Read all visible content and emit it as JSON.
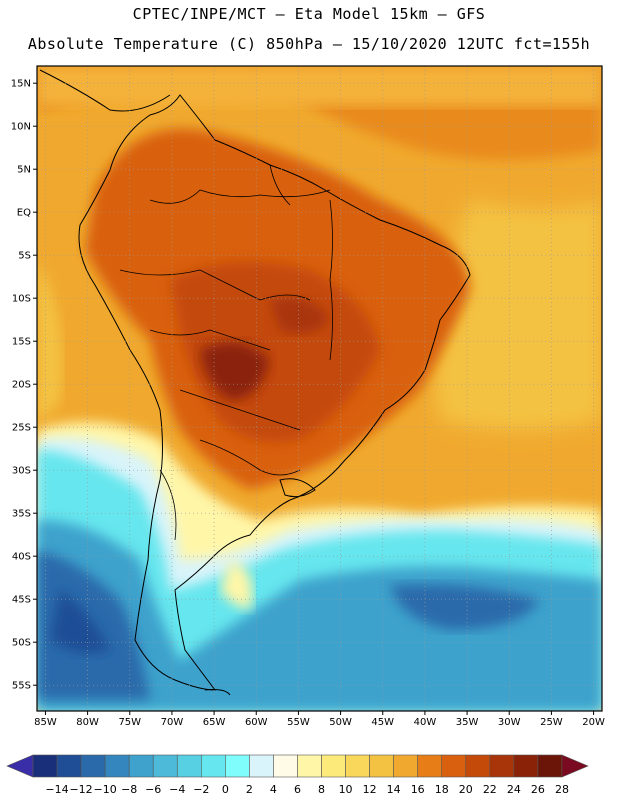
{
  "header": {
    "line1": "CPTEC/INPE/MCT –  Eta Model 15km – GFS",
    "line2": "Absolute Temperature (C) 850hPa – 15/10/2020 12UTC fct=155h"
  },
  "map": {
    "lon_range": [
      -86,
      -19
    ],
    "lat_range": [
      -58,
      17
    ],
    "lat_ticks": [
      {
        "value": 15,
        "label": "15N"
      },
      {
        "value": 10,
        "label": "10N"
      },
      {
        "value": 5,
        "label": "5N"
      },
      {
        "value": 0,
        "label": "EQ"
      },
      {
        "value": -5,
        "label": "5S"
      },
      {
        "value": -10,
        "label": "10S"
      },
      {
        "value": -15,
        "label": "15S"
      },
      {
        "value": -20,
        "label": "20S"
      },
      {
        "value": -25,
        "label": "25S"
      },
      {
        "value": -30,
        "label": "30S"
      },
      {
        "value": -35,
        "label": "35S"
      },
      {
        "value": -40,
        "label": "40S"
      },
      {
        "value": -45,
        "label": "45S"
      },
      {
        "value": -50,
        "label": "50S"
      },
      {
        "value": -55,
        "label": "55S"
      }
    ],
    "lon_ticks": [
      {
        "value": -85,
        "label": "85W"
      },
      {
        "value": -80,
        "label": "80W"
      },
      {
        "value": -75,
        "label": "75W"
      },
      {
        "value": -70,
        "label": "70W"
      },
      {
        "value": -65,
        "label": "65W"
      },
      {
        "value": -60,
        "label": "60W"
      },
      {
        "value": -55,
        "label": "55W"
      },
      {
        "value": -50,
        "label": "50W"
      },
      {
        "value": -45,
        "label": "45W"
      },
      {
        "value": -40,
        "label": "40W"
      },
      {
        "value": -35,
        "label": "35W"
      },
      {
        "value": -30,
        "label": "30W"
      },
      {
        "value": -25,
        "label": "25W"
      },
      {
        "value": -20,
        "label": "20W"
      }
    ],
    "grid": "dotted"
  },
  "colorbar": {
    "labels": [
      "-14",
      "-12",
      "-10",
      "-8",
      "-6",
      "-4",
      "-2",
      "0",
      "2",
      "4",
      "6",
      "8",
      "10",
      "12",
      "14",
      "16",
      "18",
      "20",
      "22",
      "24",
      "26",
      "28"
    ],
    "colors": [
      "#6a0dad",
      "#1a2f7a",
      "#1f4d96",
      "#2a6aab",
      "#3387be",
      "#3ea2cc",
      "#4cbad8",
      "#56d0e2",
      "#66e6ee",
      "#7ffcfc",
      "#d9f4fa",
      "#fffbe6",
      "#fff6a8",
      "#fcea7a",
      "#f9d75a",
      "#f4c242",
      "#f0a92e",
      "#e67d16",
      "#d9600e",
      "#c44a0a",
      "#a8340a",
      "#8a2208",
      "#6a1508"
    ],
    "under_color": "#3a2ea8",
    "over_color": "#7a0a1f"
  }
}
